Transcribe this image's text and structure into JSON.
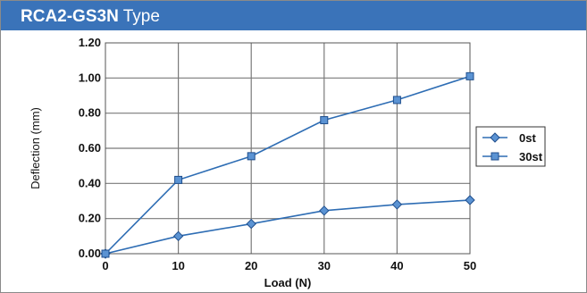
{
  "header": {
    "model": "RCA2-GS3N",
    "suffix": "Type",
    "bg_color": "#3a73b9"
  },
  "chart_data": {
    "type": "line",
    "xlabel": "Load (N)",
    "ylabel": "Deflection (mm)",
    "x": [
      0,
      10,
      20,
      30,
      40,
      50
    ],
    "x_ticks": [
      "0",
      "10",
      "20",
      "30",
      "40",
      "50"
    ],
    "y_ticks": [
      "0.00",
      "0.20",
      "0.40",
      "0.60",
      "0.80",
      "1.00",
      "1.20"
    ],
    "xlim": [
      0,
      50
    ],
    "ylim": [
      0,
      1.2
    ],
    "grid": true,
    "legend_position": "right",
    "series": [
      {
        "name": "0st",
        "marker": "diamond",
        "color": "#2e6db4",
        "values": [
          0.0,
          0.1,
          0.17,
          0.245,
          0.28,
          0.305
        ]
      },
      {
        "name": "30st",
        "marker": "square",
        "color": "#2e6db4",
        "values": [
          0.0,
          0.42,
          0.555,
          0.76,
          0.875,
          1.01
        ]
      }
    ]
  }
}
